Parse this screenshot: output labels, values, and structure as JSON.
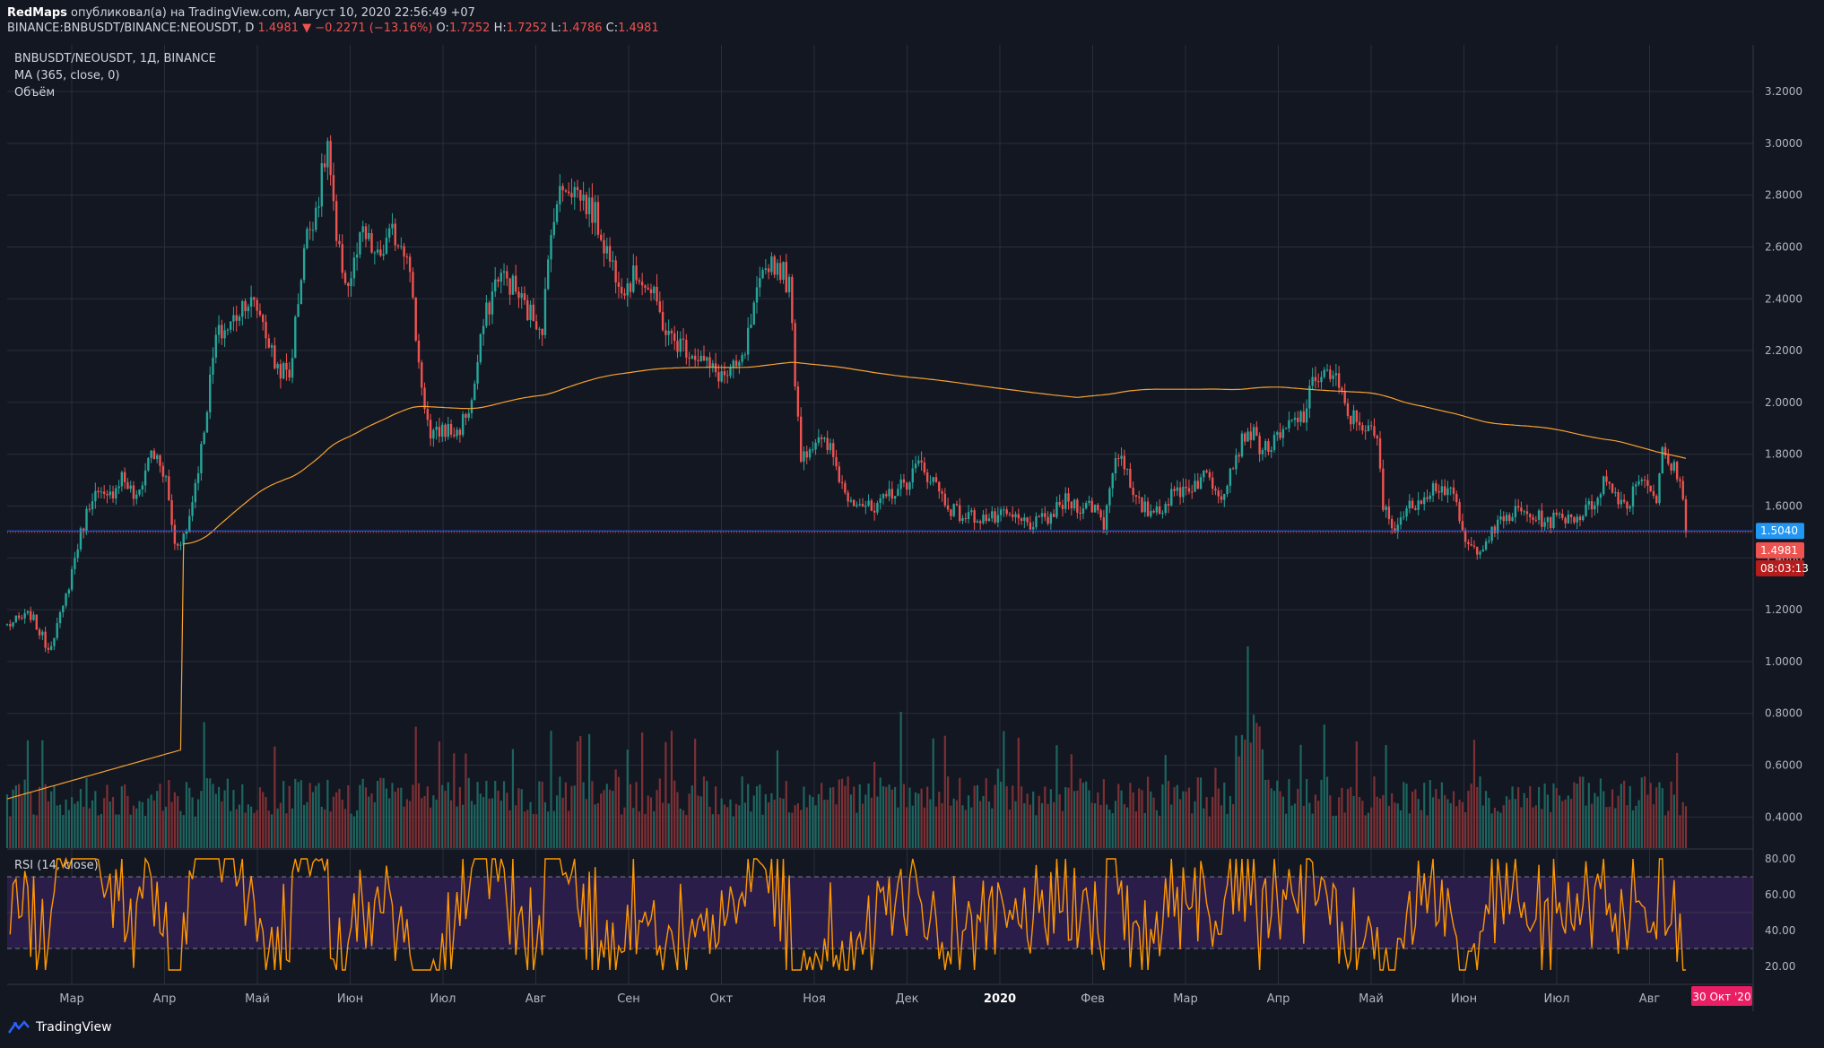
{
  "header": {
    "author": "RedMaps",
    "published_text": "опубликовал(а) на TradingView.com, Август 10, 2020 22:56:49 +07",
    "symbol": "BINANCE:BNBUSDT/BINANCE:NEOUSDT, D",
    "last": "1.4981",
    "change": "−0.2271 (−13.16%)",
    "o_label": "O:",
    "o_value": "1.7252",
    "h_label": "H:",
    "h_value": "1.7252",
    "l_label": "L:",
    "l_value": "1.4786",
    "c_label": "C:",
    "c_value": "1.4981"
  },
  "legend": {
    "symbol_line": "BNBUSDT/NEOUSDT, 1Д, BINANCE",
    "ma_line": "MA (365, close, 0)",
    "volume_line": "Объём"
  },
  "rsi": {
    "title": "RSI (14, close)"
  },
  "footer": {
    "brand": "TradingView"
  },
  "colors": {
    "background": "#131722",
    "grid": "#2a2e39",
    "up": "#26a69a",
    "down": "#ef5350",
    "ma": "#f7a230",
    "rsi_line": "#ff9800",
    "rsi_band": "#2b1d4a",
    "price_line": "#2962ff",
    "current_price_tag": "#ef5350",
    "ma_price_tag": "#2196f3",
    "date_tag": "#e91e63"
  },
  "chart_data": {
    "type": "candlestick",
    "y_ticks": [
      "3.2000",
      "3.0000",
      "2.8000",
      "2.6000",
      "2.4000",
      "2.2000",
      "2.0000",
      "1.8000",
      "1.6000",
      "1.4000",
      "1.2000",
      "1.0000",
      "0.8000",
      "0.6000",
      "0.4000"
    ],
    "ylim": [
      0.28,
      3.38
    ],
    "rsi_ticks": [
      "80.00",
      "60.00",
      "40.00",
      "20.00"
    ],
    "rsi_ylim": [
      10,
      85
    ],
    "rsi_levels": [
      30,
      70
    ],
    "x_ticks": [
      "Мар",
      "Апр",
      "Май",
      "Июн",
      "Июл",
      "Авг",
      "Сен",
      "Окт",
      "Ноя",
      "Дек",
      "2020",
      "Фев",
      "Мар",
      "Апр",
      "Май",
      "Июн",
      "Июл",
      "Авг"
    ],
    "date_tag": "30 Окт '20",
    "price_tags": {
      "ma_value": "1.5040",
      "last_value": "1.4981",
      "countdown": "08:03:13"
    },
    "anchors": [
      {
        "t": 0,
        "p": 1.14
      },
      {
        "t": 8,
        "p": 1.18
      },
      {
        "t": 14,
        "p": 1.05
      },
      {
        "t": 19,
        "p": 1.2
      },
      {
        "t": 24,
        "p": 1.45
      },
      {
        "t": 29,
        "p": 1.65
      },
      {
        "t": 34,
        "p": 1.62
      },
      {
        "t": 39,
        "p": 1.72
      },
      {
        "t": 44,
        "p": 1.62
      },
      {
        "t": 49,
        "p": 1.82
      },
      {
        "t": 54,
        "p": 1.7
      },
      {
        "t": 57,
        "p": 1.45
      },
      {
        "t": 61,
        "p": 1.5
      },
      {
        "t": 66,
        "p": 1.82
      },
      {
        "t": 71,
        "p": 2.25
      },
      {
        "t": 76,
        "p": 2.3
      },
      {
        "t": 81,
        "p": 2.4
      },
      {
        "t": 86,
        "p": 2.35
      },
      {
        "t": 91,
        "p": 2.15
      },
      {
        "t": 96,
        "p": 2.1
      },
      {
        "t": 101,
        "p": 2.6
      },
      {
        "t": 106,
        "p": 2.8
      },
      {
        "t": 109,
        "p": 3.0
      },
      {
        "t": 112,
        "p": 2.6
      },
      {
        "t": 116,
        "p": 2.45
      },
      {
        "t": 121,
        "p": 2.65
      },
      {
        "t": 126,
        "p": 2.55
      },
      {
        "t": 131,
        "p": 2.65
      },
      {
        "t": 136,
        "p": 2.6
      },
      {
        "t": 140,
        "p": 2.15
      },
      {
        "t": 144,
        "p": 1.85
      },
      {
        "t": 148,
        "p": 1.9
      },
      {
        "t": 153,
        "p": 1.88
      },
      {
        "t": 158,
        "p": 2.0
      },
      {
        "t": 162,
        "p": 2.3
      },
      {
        "t": 167,
        "p": 2.5
      },
      {
        "t": 172,
        "p": 2.45
      },
      {
        "t": 177,
        "p": 2.35
      },
      {
        "t": 182,
        "p": 2.3
      },
      {
        "t": 186,
        "p": 2.75
      },
      {
        "t": 190,
        "p": 2.85
      },
      {
        "t": 195,
        "p": 2.8
      },
      {
        "t": 200,
        "p": 2.72
      },
      {
        "t": 205,
        "p": 2.55
      },
      {
        "t": 210,
        "p": 2.45
      },
      {
        "t": 215,
        "p": 2.5
      },
      {
        "t": 220,
        "p": 2.4
      },
      {
        "t": 225,
        "p": 2.25
      },
      {
        "t": 230,
        "p": 2.22
      },
      {
        "t": 235,
        "p": 2.18
      },
      {
        "t": 240,
        "p": 2.12
      },
      {
        "t": 245,
        "p": 2.1
      },
      {
        "t": 250,
        "p": 2.15
      },
      {
        "t": 255,
        "p": 2.4
      },
      {
        "t": 259,
        "p": 2.55
      },
      {
        "t": 263,
        "p": 2.52
      },
      {
        "t": 266,
        "p": 2.45
      },
      {
        "t": 268,
        "p": 2.1
      },
      {
        "t": 270,
        "p": 1.8
      },
      {
        "t": 275,
        "p": 1.85
      },
      {
        "t": 280,
        "p": 1.82
      },
      {
        "t": 285,
        "p": 1.65
      },
      {
        "t": 290,
        "p": 1.62
      },
      {
        "t": 295,
        "p": 1.57
      },
      {
        "t": 300,
        "p": 1.65
      },
      {
        "t": 305,
        "p": 1.68
      },
      {
        "t": 310,
        "p": 1.76
      },
      {
        "t": 315,
        "p": 1.7
      },
      {
        "t": 320,
        "p": 1.6
      },
      {
        "t": 325,
        "p": 1.56
      },
      {
        "t": 330,
        "p": 1.56
      },
      {
        "t": 335,
        "p": 1.55
      },
      {
        "t": 340,
        "p": 1.56
      },
      {
        "t": 345,
        "p": 1.54
      },
      {
        "t": 350,
        "p": 1.53
      },
      {
        "t": 355,
        "p": 1.56
      },
      {
        "t": 360,
        "p": 1.62
      },
      {
        "t": 365,
        "p": 1.6
      },
      {
        "t": 370,
        "p": 1.6
      },
      {
        "t": 373,
        "p": 1.53
      },
      {
        "t": 376,
        "p": 1.75
      },
      {
        "t": 379,
        "p": 1.82
      },
      {
        "t": 383,
        "p": 1.62
      },
      {
        "t": 388,
        "p": 1.58
      },
      {
        "t": 393,
        "p": 1.6
      },
      {
        "t": 398,
        "p": 1.66
      },
      {
        "t": 403,
        "p": 1.68
      },
      {
        "t": 408,
        "p": 1.72
      },
      {
        "t": 413,
        "p": 1.65
      },
      {
        "t": 418,
        "p": 1.8
      },
      {
        "t": 422,
        "p": 1.9
      },
      {
        "t": 427,
        "p": 1.82
      },
      {
        "t": 432,
        "p": 1.85
      },
      {
        "t": 437,
        "p": 1.92
      },
      {
        "t": 441,
        "p": 1.95
      },
      {
        "t": 445,
        "p": 2.1
      },
      {
        "t": 448,
        "p": 2.12
      },
      {
        "t": 452,
        "p": 2.08
      },
      {
        "t": 456,
        "p": 1.95
      },
      {
        "t": 461,
        "p": 1.92
      },
      {
        "t": 466,
        "p": 1.85
      },
      {
        "t": 468,
        "p": 1.6
      },
      {
        "t": 471,
        "p": 1.52
      },
      {
        "t": 476,
        "p": 1.58
      },
      {
        "t": 481,
        "p": 1.64
      },
      {
        "t": 486,
        "p": 1.68
      },
      {
        "t": 490,
        "p": 1.66
      },
      {
        "t": 493,
        "p": 1.6
      },
      {
        "t": 496,
        "p": 1.45
      },
      {
        "t": 499,
        "p": 1.43
      },
      {
        "t": 504,
        "p": 1.48
      },
      {
        "t": 509,
        "p": 1.55
      },
      {
        "t": 514,
        "p": 1.58
      },
      {
        "t": 519,
        "p": 1.56
      },
      {
        "t": 524,
        "p": 1.54
      },
      {
        "t": 529,
        "p": 1.56
      },
      {
        "t": 534,
        "p": 1.56
      },
      {
        "t": 539,
        "p": 1.6
      },
      {
        "t": 543,
        "p": 1.7
      },
      {
        "t": 547,
        "p": 1.65
      },
      {
        "t": 551,
        "p": 1.6
      },
      {
        "t": 555,
        "p": 1.72
      },
      {
        "t": 559,
        "p": 1.68
      },
      {
        "t": 561,
        "p": 1.62
      },
      {
        "t": 563,
        "p": 1.8
      },
      {
        "t": 566,
        "p": 1.75
      },
      {
        "t": 569,
        "p": 1.72
      },
      {
        "t": 571,
        "p": 1.4981
      }
    ]
  }
}
